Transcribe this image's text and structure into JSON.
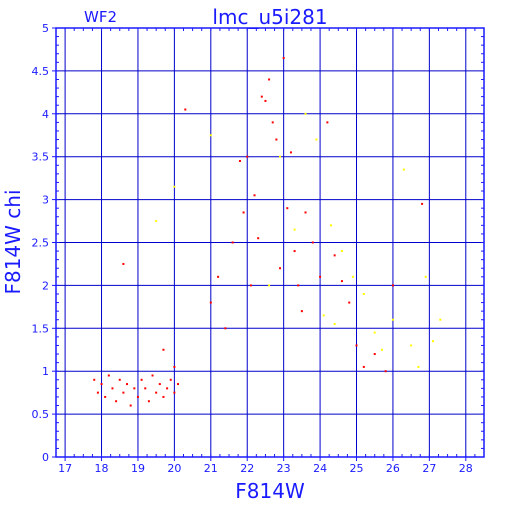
{
  "chart_data": {
    "type": "scatter",
    "title": "lmc_u5i281",
    "subtitle": "WF2",
    "xlabel": "F814W",
    "ylabel": "F814W chi",
    "xlim": [
      16.75,
      28.5
    ],
    "ylim": [
      0,
      5
    ],
    "xticks": [
      17,
      18,
      19,
      20,
      21,
      22,
      23,
      24,
      25,
      26,
      27,
      28
    ],
    "xtick_labels": [
      "17",
      "18",
      "19",
      "20",
      "21",
      "22",
      "23",
      "24",
      "25",
      "26",
      "27",
      "28"
    ],
    "yticks": [
      0,
      0.5,
      1,
      1.5,
      2,
      2.5,
      3,
      3.5,
      4,
      4.5,
      5
    ],
    "ytick_labels": [
      "0",
      "0.5",
      "1",
      "1.5",
      "2",
      "2.5",
      "3",
      "3.5",
      "4",
      "4.5",
      "5"
    ],
    "grid": true,
    "colors": {
      "axis": "#1a1aff",
      "grid": "#0000cc",
      "series_main": "#ff0000",
      "series_secondary": "#ffff00"
    },
    "series": [
      {
        "color": "#ff0000",
        "points": [
          [
            17.8,
            0.9
          ],
          [
            17.9,
            0.75
          ],
          [
            18.0,
            0.85
          ],
          [
            18.1,
            0.7
          ],
          [
            18.2,
            0.95
          ],
          [
            18.3,
            0.8
          ],
          [
            18.4,
            0.65
          ],
          [
            18.5,
            0.9
          ],
          [
            18.6,
            0.75
          ],
          [
            18.7,
            0.85
          ],
          [
            18.8,
            0.6
          ],
          [
            18.9,
            0.8
          ],
          [
            19.0,
            0.7
          ],
          [
            19.1,
            0.9
          ],
          [
            19.2,
            0.8
          ],
          [
            19.3,
            0.65
          ],
          [
            19.4,
            0.95
          ],
          [
            19.5,
            0.75
          ],
          [
            19.6,
            0.85
          ],
          [
            19.7,
            0.7
          ],
          [
            19.8,
            0.8
          ],
          [
            19.9,
            0.9
          ],
          [
            20.0,
            0.75
          ],
          [
            20.1,
            0.85
          ],
          [
            18.6,
            2.25
          ],
          [
            20.3,
            4.05
          ],
          [
            20.0,
            1.05
          ],
          [
            19.7,
            1.25
          ],
          [
            21.0,
            1.8
          ],
          [
            21.2,
            2.1
          ],
          [
            21.4,
            1.5
          ],
          [
            21.6,
            2.5
          ],
          [
            21.8,
            3.45
          ],
          [
            21.9,
            2.85
          ],
          [
            22.0,
            3.5
          ],
          [
            22.1,
            2.0
          ],
          [
            22.2,
            3.05
          ],
          [
            22.3,
            2.55
          ],
          [
            22.4,
            4.2
          ],
          [
            22.5,
            4.15
          ],
          [
            22.6,
            4.4
          ],
          [
            22.7,
            3.9
          ],
          [
            22.8,
            3.7
          ],
          [
            22.9,
            2.2
          ],
          [
            23.0,
            4.65
          ],
          [
            23.1,
            2.9
          ],
          [
            23.2,
            3.55
          ],
          [
            23.3,
            2.4
          ],
          [
            23.4,
            2.0
          ],
          [
            23.5,
            1.7
          ],
          [
            23.6,
            2.85
          ],
          [
            23.8,
            2.5
          ],
          [
            24.0,
            2.1
          ],
          [
            24.2,
            3.9
          ],
          [
            24.4,
            2.35
          ],
          [
            24.6,
            2.05
          ],
          [
            24.8,
            1.8
          ],
          [
            25.0,
            1.3
          ],
          [
            25.5,
            1.2
          ],
          [
            25.8,
            1.0
          ],
          [
            26.0,
            2.0
          ],
          [
            26.8,
            2.95
          ],
          [
            25.2,
            1.05
          ]
        ]
      },
      {
        "color": "#ffff00",
        "points": [
          [
            19.5,
            2.75
          ],
          [
            20.0,
            3.15
          ],
          [
            21.0,
            3.75
          ],
          [
            22.6,
            2.0
          ],
          [
            22.9,
            3.5
          ],
          [
            23.3,
            2.65
          ],
          [
            23.6,
            4.0
          ],
          [
            24.3,
            2.7
          ],
          [
            24.6,
            2.4
          ],
          [
            24.9,
            2.1
          ],
          [
            25.2,
            1.9
          ],
          [
            25.5,
            1.45
          ],
          [
            25.7,
            1.25
          ],
          [
            26.0,
            1.6
          ],
          [
            26.3,
            3.35
          ],
          [
            26.5,
            1.3
          ],
          [
            26.7,
            1.05
          ],
          [
            26.9,
            2.1
          ],
          [
            27.1,
            1.35
          ],
          [
            27.3,
            1.6
          ],
          [
            23.9,
            3.7
          ],
          [
            24.1,
            1.65
          ],
          [
            24.4,
            1.55
          ]
        ]
      }
    ]
  }
}
